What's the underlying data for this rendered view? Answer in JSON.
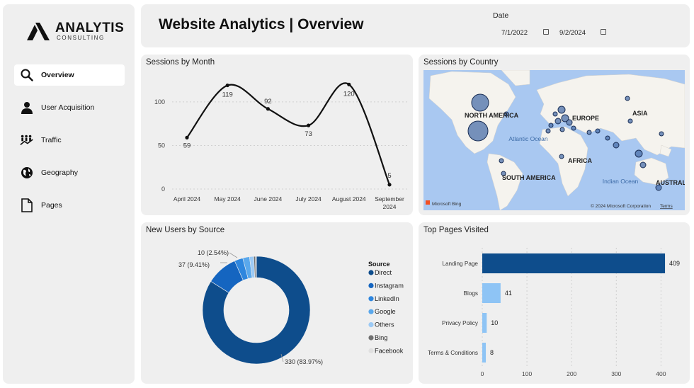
{
  "logo": {
    "name": "ANALYTIS",
    "sub": "CONSULTING"
  },
  "nav": [
    {
      "label": "Overview",
      "icon": "search-icon",
      "active": true
    },
    {
      "label": "User Acquisition",
      "icon": "user-icon",
      "active": false
    },
    {
      "label": "Traffic",
      "icon": "traffic-icon",
      "active": false
    },
    {
      "label": "Geography",
      "icon": "globe-icon",
      "active": false
    },
    {
      "label": "Pages",
      "icon": "page-icon",
      "active": false
    }
  ],
  "header": {
    "title": "Website Analytics | Overview",
    "date_label": "Date",
    "date_start": "7/1/2022",
    "date_end": "9/2/2024"
  },
  "cards": {
    "sessions": "Sessions by Month",
    "country": "Sessions by Country",
    "newusers": "New Users by Source",
    "toppages": "Top Pages Visited"
  },
  "map": {
    "labels": [
      "NORTH AMERICA",
      "EUROPE",
      "ASIA",
      "AFRICA",
      "SOUTH AMERICA",
      "AUSTRALIA",
      "Atlantic Ocean",
      "Indian Ocean"
    ],
    "bing": "Microsoft Bing",
    "copyright": "© 2024 Microsoft Corporation",
    "terms": "Terms"
  },
  "chart_data": [
    {
      "type": "line",
      "title": "Sessions by Month",
      "categories": [
        "April 2024",
        "May 2024",
        "June 2024",
        "July 2024",
        "August 2024",
        "September 2024"
      ],
      "values": [
        59,
        119,
        92,
        73,
        120,
        5
      ],
      "yticks": [
        0,
        50,
        100
      ],
      "ylim": [
        0,
        130
      ],
      "grid": true
    },
    {
      "type": "pie",
      "title": "New Users by Source",
      "legend_title": "Source",
      "legend_position": "right",
      "slices": [
        {
          "name": "Direct",
          "value": 330,
          "label": "330 (83.97%)",
          "color": "#0e4d8c"
        },
        {
          "name": "Instagram",
          "value": 37,
          "label": "37 (9.41%)",
          "color": "#1565c0"
        },
        {
          "name": "LinkedIn",
          "value": 10,
          "label": "10 (2.54%)",
          "color": "#2e86de"
        },
        {
          "name": "Google",
          "value": 8,
          "label": "",
          "color": "#5aa8ec"
        },
        {
          "name": "Others",
          "value": 5,
          "label": "",
          "color": "#9ccaf5"
        },
        {
          "name": "Bing",
          "value": 2,
          "label": "",
          "color": "#707070"
        },
        {
          "name": "Facebook",
          "value": 1,
          "label": "",
          "color": "#e0e0e0"
        }
      ]
    },
    {
      "type": "bar",
      "orientation": "horizontal",
      "title": "Top Pages Visited",
      "categories": [
        "Landing Page",
        "Blogs",
        "Privacy Policy",
        "Terms & Conditions"
      ],
      "values": [
        409,
        41,
        10,
        8
      ],
      "xticks": [
        0,
        100,
        200,
        300,
        400
      ],
      "xlim": [
        0,
        420
      ],
      "colors": {
        "primary": "#0e4d8c",
        "secondary": "#8ec4f5"
      }
    }
  ]
}
